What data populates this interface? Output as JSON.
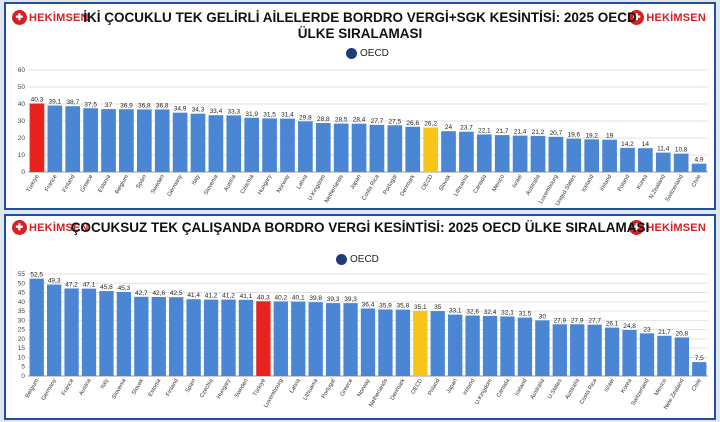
{
  "colors": {
    "bar": "#4a86d4",
    "highlight_red": "#e8231e",
    "highlight_oecd": "#f7c41a",
    "frame": "#1f4fa0",
    "brand": "#d42026"
  },
  "logo": {
    "icon": "hekimsen-logo-icon",
    "text": "HEKİMSEN"
  },
  "oecd_logo": {
    "icon": "oecd-logo-icon",
    "text": "OECD"
  },
  "chart_data": [
    {
      "type": "bar",
      "title": "İKİ ÇOCUKLU TEK GELİRLİ AİLELERDE BORDRO VERGİ+SGK KESİNTİSİ: 2025 OECD ÜLKE SIRALAMASI",
      "ylim": [
        0,
        60
      ],
      "yticks": [
        0,
        10,
        20,
        30,
        40,
        50,
        60
      ],
      "grid": true,
      "legend": "none",
      "highlight": {
        "red": [
          "Türkiye"
        ],
        "yellow": [
          "OECD"
        ]
      },
      "categories": [
        "Türkiye",
        "France",
        "Finland",
        "Greece",
        "Estonia",
        "Belgium",
        "Spain",
        "Sweden",
        "Germany",
        "Italy",
        "Slovenia",
        "Austria",
        "Czechia",
        "Hungary",
        "Norway",
        "Latvia",
        "U.Kingdom",
        "Netherlands",
        "Japan",
        "Costa Rica",
        "Portugal",
        "Denmark",
        "OECD",
        "Slovak",
        "Lithuania",
        "Canada",
        "Mexico",
        "Israel",
        "Australia",
        "Luxembourg",
        "United States",
        "Iceland",
        "Ireland",
        "Poland",
        "Korea",
        "N.Zealand",
        "Switzerland",
        "Chile"
      ],
      "values": [
        40.3,
        39.1,
        38.7,
        37.5,
        37,
        36.9,
        36.8,
        36.8,
        34.9,
        34.3,
        33.4,
        33.3,
        31.9,
        31.5,
        31.4,
        29.8,
        28.8,
        28.5,
        28.4,
        27.7,
        27.5,
        26.6,
        26.2,
        24,
        23.7,
        22.1,
        21.7,
        21.4,
        21.2,
        20.7,
        19.6,
        19.2,
        19,
        14.2,
        14,
        11.4,
        10.8,
        4.9
      ]
    },
    {
      "type": "bar",
      "title": "ÇOCUKSUZ TEK ÇALIŞANDA BORDRO VERGİ  KESİNTİSİ: 2025 OECD ÜLKE SIRALAMASI",
      "ylim": [
        0,
        55
      ],
      "yticks": [
        0,
        5,
        10,
        15,
        20,
        25,
        30,
        35,
        40,
        45,
        50,
        55
      ],
      "grid": true,
      "legend": "none",
      "highlight": {
        "red": [
          "Türkiye"
        ],
        "yellow": [
          "OECD"
        ]
      },
      "categories": [
        "Belgium",
        "Germany",
        "France",
        "Austria",
        "Italy",
        "Slovenia",
        "Slovak",
        "Estonia",
        "Finland",
        "Spain",
        "Czechia",
        "Hungary",
        "Sweden",
        "Türkiye",
        "Luxembourg",
        "Latvia",
        "Lithuania",
        "Portugal",
        "Greece",
        "Norway",
        "Netherlands",
        "Denmark",
        "OECD",
        "Poland",
        "Japan",
        "Ireland",
        "U.Kingdom",
        "Canada",
        "Iceland",
        "Australia",
        "U.States",
        "Australia",
        "Costa Rica",
        "Israel",
        "Korea",
        "Switzerland",
        "Mexico",
        "New Zealand",
        "Chile"
      ],
      "values": [
        52.5,
        49.3,
        47.2,
        47.1,
        45.8,
        45.3,
        42.7,
        42.6,
        42.5,
        41.4,
        41.2,
        41.2,
        41.1,
        40.3,
        40.2,
        40.1,
        39.8,
        39.3,
        39.3,
        36.4,
        35.9,
        35.8,
        35.1,
        35,
        33.1,
        32.6,
        32.4,
        32.1,
        31.5,
        30,
        27.9,
        27.9,
        27.7,
        26.1,
        24.8,
        23,
        21.7,
        20.8,
        7.5
      ]
    }
  ]
}
